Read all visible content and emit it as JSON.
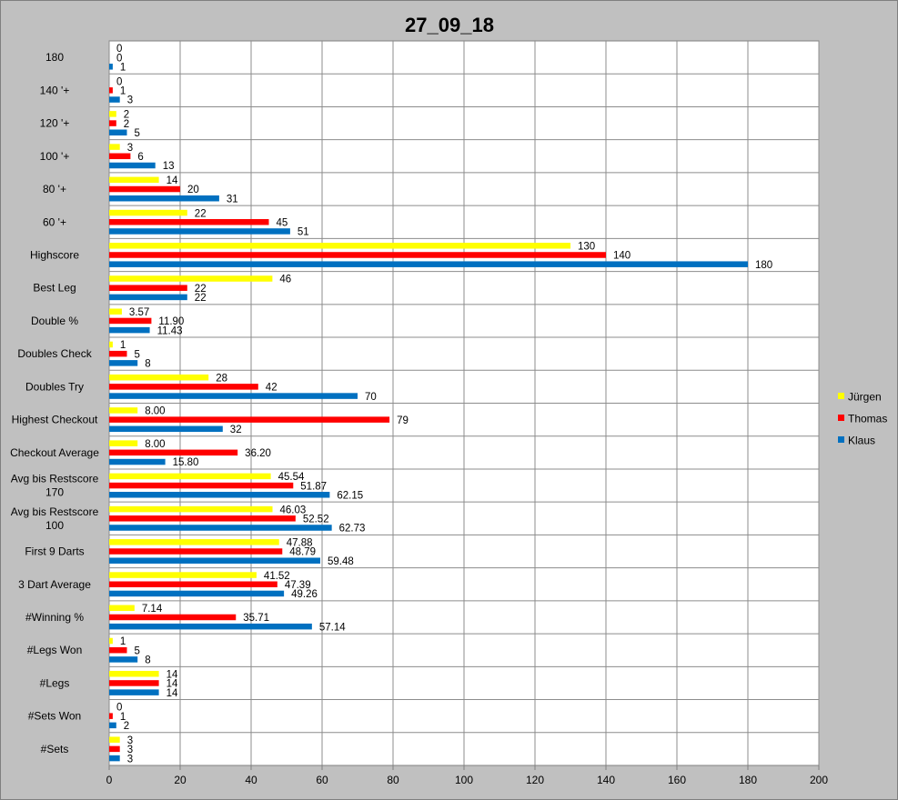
{
  "chart_data": {
    "type": "bar",
    "orientation": "horizontal",
    "title": "27_09_18",
    "xlim": [
      0,
      200
    ],
    "x_ticks": [
      "0",
      "20",
      "40",
      "60",
      "80",
      "100",
      "120",
      "140",
      "160",
      "180",
      "200"
    ],
    "grid": true,
    "legend_position": "right",
    "categories": [
      [
        "180"
      ],
      [
        "140 '+"
      ],
      [
        "120 '+"
      ],
      [
        "100 '+"
      ],
      [
        "80 '+"
      ],
      [
        "60 '+"
      ],
      [
        "Highscore"
      ],
      [
        "Best Leg"
      ],
      [
        "Double %"
      ],
      [
        "Doubles Check"
      ],
      [
        "Doubles Try"
      ],
      [
        "Highest Checkout"
      ],
      [
        "Checkout Average"
      ],
      [
        "Avg bis Restscore",
        "170"
      ],
      [
        "Avg bis Restscore",
        "100"
      ],
      [
        "First 9 Darts"
      ],
      [
        "3 Dart Average"
      ],
      [
        "#Winning %"
      ],
      [
        "#Legs Won"
      ],
      [
        "#Legs"
      ],
      [
        "#Sets Won"
      ],
      [
        "#Sets"
      ]
    ],
    "series": [
      {
        "name": "Jürgen",
        "color": "#ffff00",
        "values": [
          0,
          0,
          2,
          3,
          14,
          22,
          130,
          46,
          3.57,
          1,
          28,
          8.0,
          8.0,
          45.54,
          46.03,
          47.88,
          41.52,
          7.14,
          1,
          14,
          0,
          3
        ],
        "labels": [
          "0",
          "0",
          "2",
          "3",
          "14",
          "22",
          "130",
          "46",
          "3.57",
          "1",
          "28",
          "8.00",
          "8.00",
          "45.54",
          "46.03",
          "47.88",
          "41.52",
          "7.14",
          "1",
          "14",
          "0",
          "3"
        ]
      },
      {
        "name": "Thomas",
        "color": "#ff0000",
        "values": [
          0,
          1,
          2,
          6,
          20,
          45,
          140,
          22,
          11.9,
          5,
          42,
          79,
          36.2,
          51.87,
          52.52,
          48.79,
          47.39,
          35.71,
          5,
          14,
          1,
          3
        ],
        "labels": [
          "0",
          "1",
          "2",
          "6",
          "20",
          "45",
          "140",
          "22",
          "11.90",
          "5",
          "42",
          "79",
          "36.20",
          "51.87",
          "52.52",
          "48.79",
          "47.39",
          "35.71",
          "5",
          "14",
          "1",
          "3"
        ]
      },
      {
        "name": "Klaus",
        "color": "#0070c0",
        "values": [
          1,
          3,
          5,
          13,
          31,
          51,
          180,
          22,
          11.43,
          8,
          70,
          32,
          15.8,
          62.15,
          62.73,
          59.48,
          49.26,
          57.14,
          8,
          14,
          2,
          3
        ],
        "labels": [
          "1",
          "3",
          "5",
          "13",
          "31",
          "51",
          "180",
          "22",
          "11.43",
          "8",
          "70",
          "32",
          "15.80",
          "62.15",
          "62.73",
          "59.48",
          "49.26",
          "57.14",
          "8",
          "14",
          "2",
          "3"
        ]
      }
    ]
  }
}
